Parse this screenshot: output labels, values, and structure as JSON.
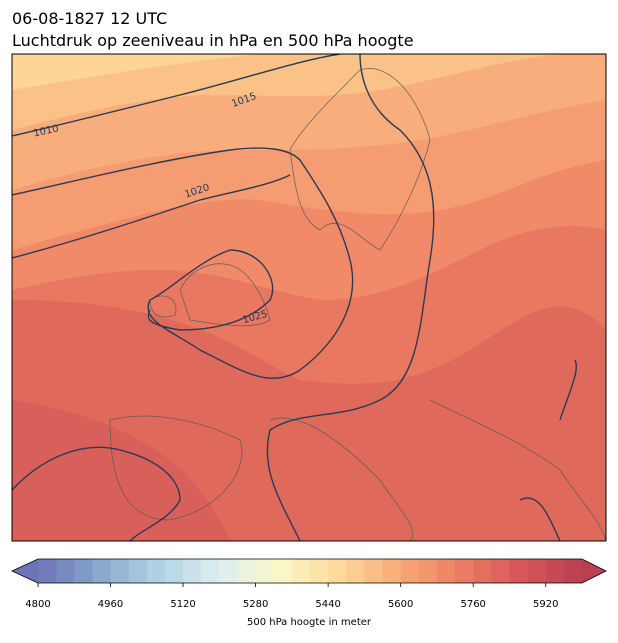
{
  "header": {
    "date": "06-08-1827 12 UTC",
    "subtitle": "Luchtdruk op zeeniveau in hPa en 500 hPa hoogte"
  },
  "map": {
    "isobar_labels": [
      1010,
      1015,
      1020,
      1025
    ]
  },
  "colorbar": {
    "label": "500 hPa hoogte in meter",
    "lim": [
      4800,
      6000
    ],
    "step": 40,
    "ticks": [
      4800,
      4960,
      5120,
      5280,
      5440,
      5600,
      5760,
      5920
    ]
  }
}
